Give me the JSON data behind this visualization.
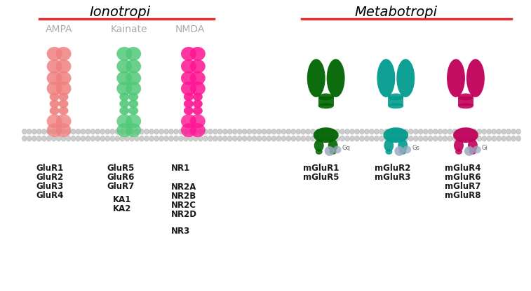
{
  "title_ionotropi": "Ionotropi",
  "title_metabotropi": "Metabotropi",
  "subtitle_ampa": "AMPA",
  "subtitle_kainate": "Kainate",
  "subtitle_nmda": "NMDA",
  "color_ampa": "#F08080",
  "color_ampa_dark": "#E06060",
  "color_kainate": "#50C878",
  "color_kainate_dark": "#30A858",
  "color_nmda": "#FF1493",
  "color_nmda_dark": "#CC0077",
  "color_mglur1": "#006400",
  "color_mglur2": "#009B8D",
  "color_mglur4": "#C0005A",
  "color_membrane": "#C8C8C8",
  "color_gprotein": "#9BAABF",
  "color_title_line": "#E03030",
  "color_subtitle": "#AAAAAA",
  "color_text": "#1A1A1A",
  "labels_ampa": [
    "GluR1",
    "GluR2",
    "GluR3",
    "GluR4"
  ],
  "labels_kainate_top": [
    "GluR5",
    "GluR6",
    "GluR7"
  ],
  "labels_kainate_bot": [
    "KA1",
    "KA2"
  ],
  "labels_nmda_top": [
    "NR1"
  ],
  "labels_nmda_mid": [
    "NR2A",
    "NR2B",
    "NR2C",
    "NR2D"
  ],
  "labels_nmda_bot": [
    "NR3"
  ],
  "labels_mglur1": [
    "mGluR1",
    "mGluR5"
  ],
  "labels_mglur2": [
    "mGluR2",
    "mGluR3"
  ],
  "labels_mglur4": [
    "mGluR4",
    "mGluR6",
    "mGluR7",
    "mGluR8"
  ],
  "gq_label": "Gq",
  "gs_label": "Gs",
  "gi_label": "Gi"
}
